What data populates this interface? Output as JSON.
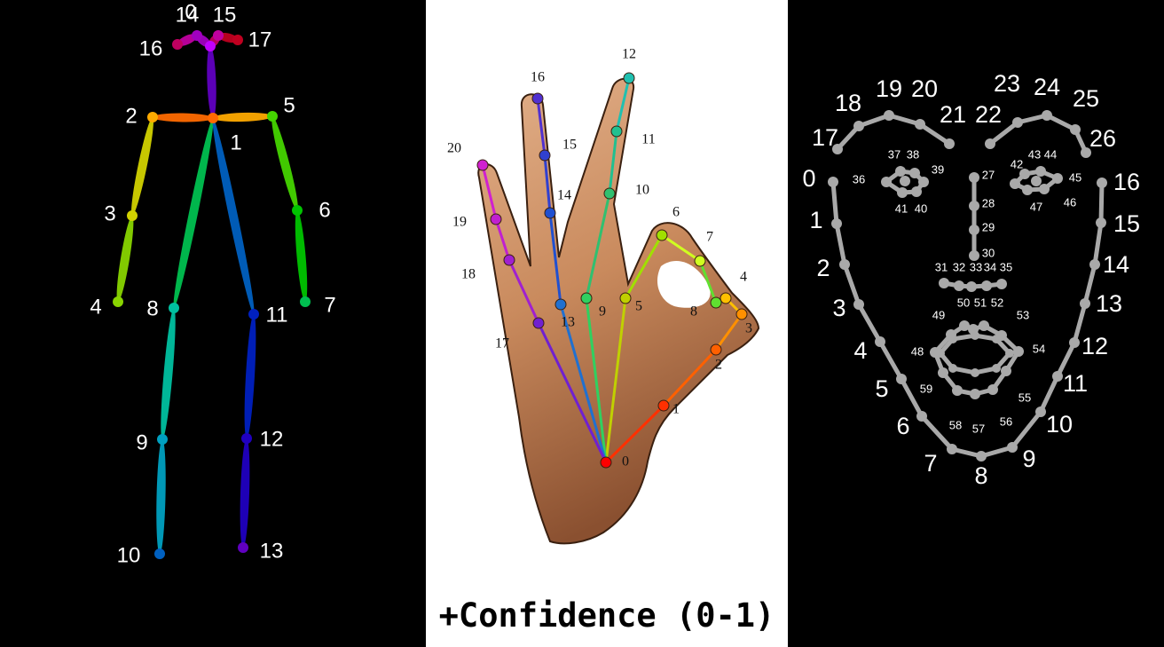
{
  "body": {
    "labels": [
      "0",
      "1",
      "2",
      "3",
      "4",
      "5",
      "6",
      "7",
      "8",
      "9",
      "10",
      "11",
      "12",
      "13",
      "14",
      "15",
      "16",
      "17"
    ],
    "colors": [
      "#c000ff",
      "#ff6a00",
      "#ffaa00",
      "#d2d200",
      "#88d400",
      "#44d400",
      "#00c400",
      "#00c050",
      "#00c0a0",
      "#00a0c0",
      "#0060c0",
      "#0020c0",
      "#2000c0",
      "#6000c0",
      "#a000c0",
      "#c000a0",
      "#c00060",
      "#c00020"
    ],
    "label_color": "#ffffff"
  },
  "hand": {
    "labels": [
      "0",
      "1",
      "2",
      "3",
      "4",
      "5",
      "6",
      "7",
      "8",
      "9",
      "10",
      "11",
      "12",
      "13",
      "14",
      "15",
      "16",
      "17",
      "18",
      "19",
      "20"
    ],
    "colors": [
      "#ff0000",
      "#ff3000",
      "#ff6000",
      "#ff9000",
      "#ffc000",
      "#c0d000",
      "#a0e000",
      "#d0ff20",
      "#60e030",
      "#30d060",
      "#30c070",
      "#20c090",
      "#20c0b0",
      "#2070d0",
      "#2050d0",
      "#3040d0",
      "#5030d0",
      "#7020d0",
      "#a020d0",
      "#c020d0",
      "#d020d0"
    ],
    "caption": "+Confidence (0-1)"
  },
  "face": {
    "labels": [
      "0",
      "1",
      "2",
      "3",
      "4",
      "5",
      "6",
      "7",
      "8",
      "9",
      "10",
      "11",
      "12",
      "13",
      "14",
      "15",
      "16",
      "17",
      "18",
      "19",
      "20",
      "21",
      "22",
      "23",
      "24",
      "25",
      "26",
      "27",
      "28",
      "29",
      "30",
      "31",
      "32",
      "33",
      "34",
      "35",
      "36",
      "37",
      "38",
      "39",
      "40",
      "41",
      "42",
      "43",
      "44",
      "45",
      "46",
      "47",
      "48",
      "49",
      "50",
      "51",
      "52",
      "53",
      "54",
      "55",
      "56",
      "57",
      "58",
      "59"
    ],
    "color": "#a9a9a9",
    "label_color": "#ffffff"
  }
}
